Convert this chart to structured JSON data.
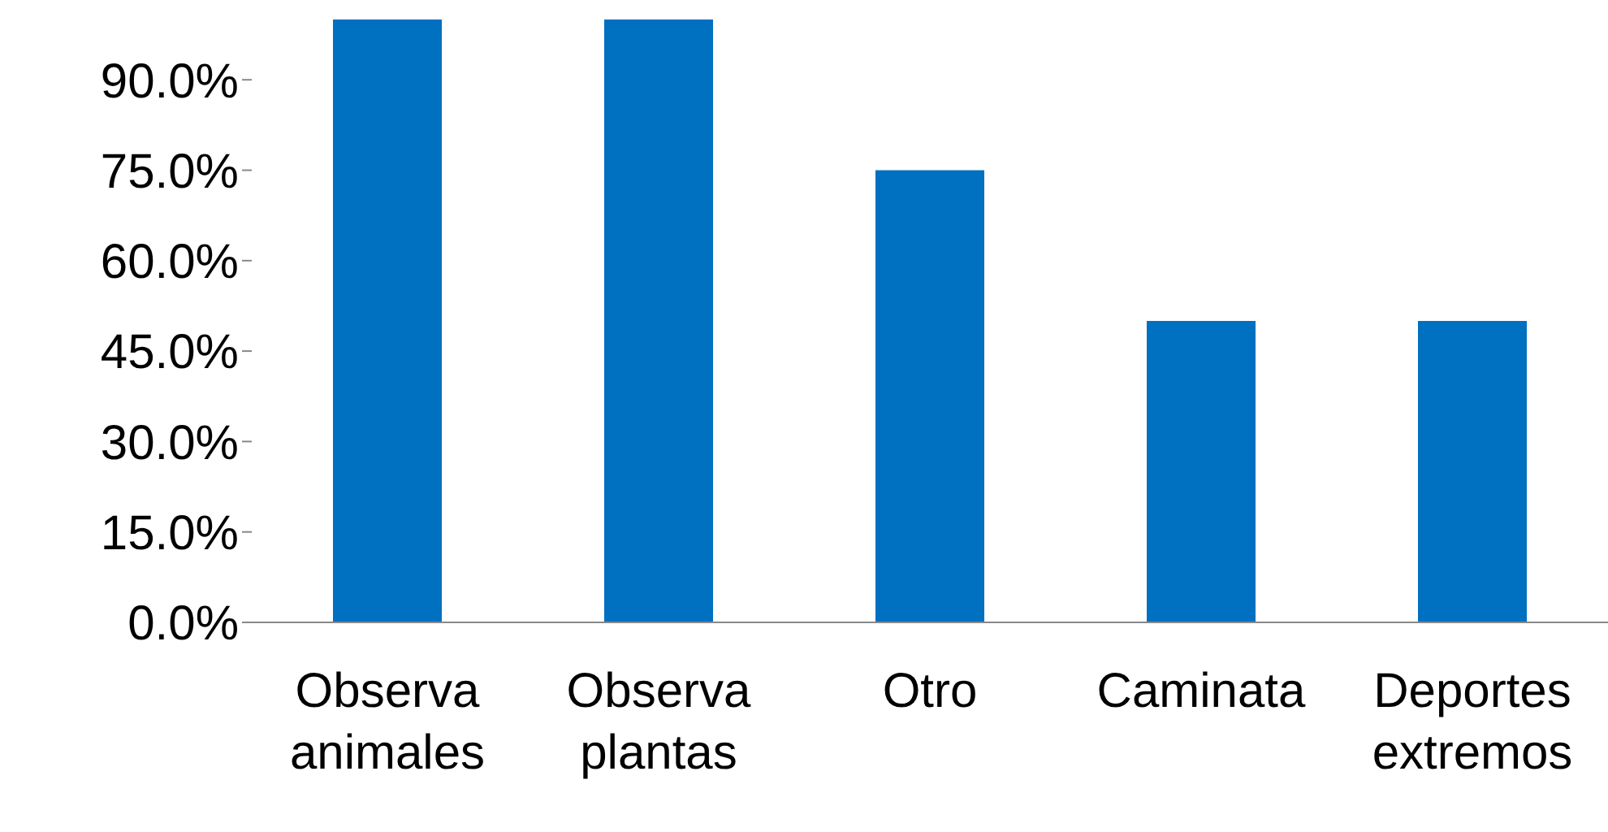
{
  "chart_data": {
    "type": "bar",
    "categories": [
      "Observa animales",
      "Observa plantas",
      "Otro",
      "Caminata",
      "Deportes extremos"
    ],
    "values": [
      100,
      100,
      75,
      50,
      50
    ],
    "color": "#0070c0",
    "ylim": [
      0,
      100
    ],
    "yticks": [
      {
        "value": 0,
        "label": "0.0%"
      },
      {
        "value": 15,
        "label": "15.0%"
      },
      {
        "value": 30,
        "label": "30.0%"
      },
      {
        "value": 45,
        "label": "45.0%"
      },
      {
        "value": 60,
        "label": "60.0%"
      },
      {
        "value": 75,
        "label": "75.0%"
      },
      {
        "value": 90,
        "label": "90.0%"
      }
    ],
    "grid": false
  }
}
